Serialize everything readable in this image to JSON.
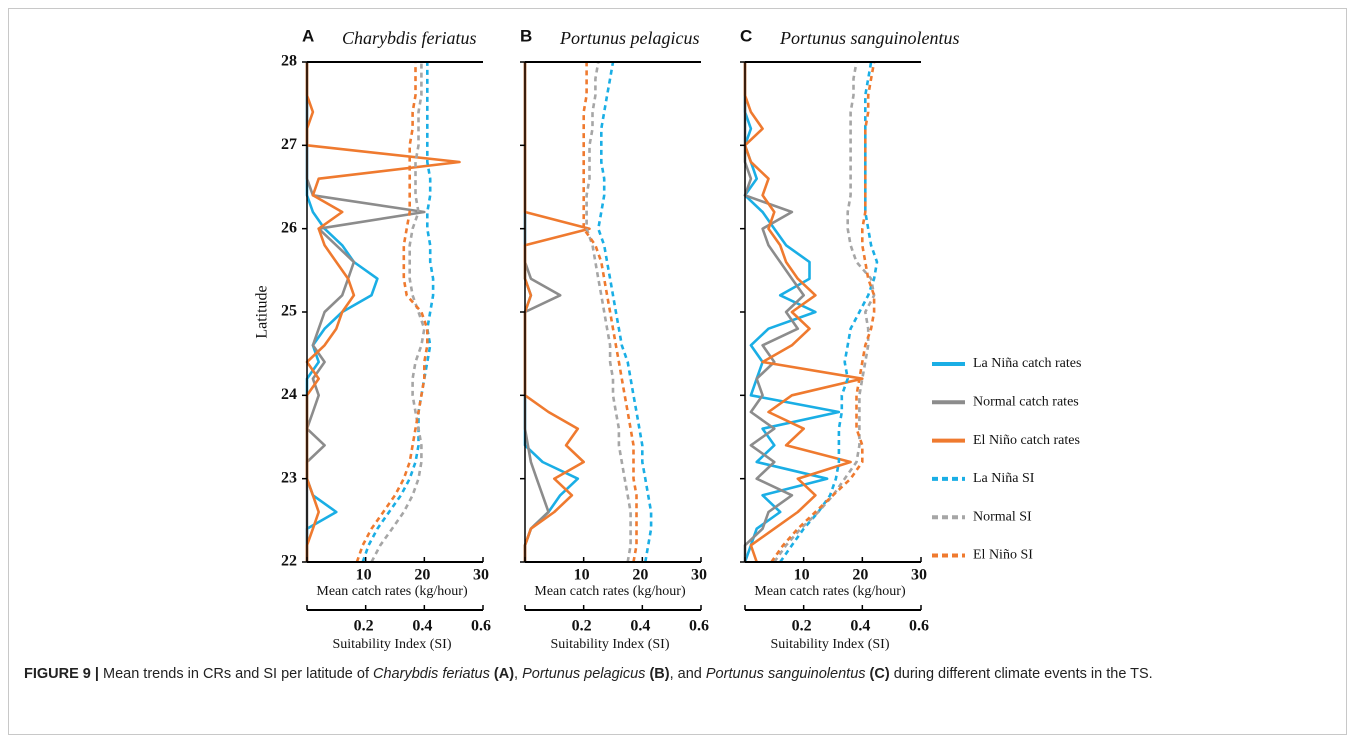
{
  "chart_data": [
    {
      "type": "line",
      "panel_label": "A",
      "title": "Charybdis feriatus",
      "ylabel": "Latitude",
      "xlabel": "Mean catch rates (kg/hour)",
      "x2label": "Suitability Index (SI)",
      "ylim": [
        22,
        28
      ],
      "yticks": [
        22,
        23,
        24,
        25,
        26,
        27,
        28
      ],
      "show_ytick_labels": true,
      "xlim": [
        0,
        30
      ],
      "xticks": [
        10,
        20,
        30
      ],
      "x2lim": [
        0,
        0.6
      ],
      "x2ticks": [
        0.2,
        0.4,
        0.6
      ],
      "legend": "right",
      "y": [
        22,
        22.2,
        22.4,
        22.6,
        22.8,
        23,
        23.2,
        23.4,
        23.6,
        23.8,
        24,
        24.2,
        24.4,
        24.6,
        24.8,
        25,
        25.2,
        25.4,
        25.6,
        25.8,
        26,
        26.2,
        26.4,
        26.6,
        26.8,
        27,
        27.2,
        27.4,
        27.6,
        27.8,
        28
      ],
      "series": [
        {
          "name": "La Niña catch rates",
          "color": "#1aaee5",
          "line_style": "solid",
          "values": [
            0,
            0,
            0,
            5,
            1,
            0,
            0,
            0,
            0,
            0,
            0,
            0,
            2,
            1,
            3,
            6,
            11,
            12,
            8,
            6,
            3,
            1,
            0,
            0,
            0,
            0,
            0,
            0,
            0,
            0,
            0
          ]
        },
        {
          "name": "Normal catch rates",
          "color": "#8c8c8c",
          "line_style": "solid",
          "values": [
            0,
            0,
            0,
            0,
            0,
            0,
            0,
            3,
            0,
            1,
            2,
            1,
            3,
            1,
            2,
            3,
            6,
            7,
            8,
            5,
            2,
            20,
            1,
            0,
            0,
            0,
            0,
            0,
            0,
            0,
            0
          ]
        },
        {
          "name": "El Niño catch rates",
          "color": "#ef7a2f",
          "line_style": "solid",
          "values": [
            0,
            0,
            1,
            2,
            1,
            0,
            0,
            0,
            0,
            0,
            0,
            2,
            0,
            3,
            5,
            6,
            8,
            7,
            5,
            3,
            2,
            6,
            1,
            2,
            26,
            0,
            0,
            1,
            0,
            0,
            0
          ]
        },
        {
          "name": "La Niña SI",
          "color": "#1aaee5",
          "line_style": "dashed",
          "axis": "x2",
          "values": [
            0.19,
            0.21,
            0.24,
            0.28,
            0.32,
            0.35,
            0.37,
            0.38,
            0.38,
            0.38,
            0.39,
            0.4,
            0.41,
            0.42,
            0.41,
            0.42,
            0.43,
            0.43,
            0.42,
            0.42,
            0.41,
            0.41,
            0.42,
            0.42,
            0.41,
            0.41,
            0.41,
            0.41,
            0.41,
            0.41,
            0.41
          ]
        },
        {
          "name": "Normal SI",
          "color": "#a6a6a6",
          "line_style": "dashed",
          "axis": "x2",
          "values": [
            0.22,
            0.25,
            0.29,
            0.33,
            0.36,
            0.38,
            0.39,
            0.39,
            0.38,
            0.37,
            0.36,
            0.36,
            0.37,
            0.39,
            0.4,
            0.38,
            0.36,
            0.35,
            0.35,
            0.35,
            0.36,
            0.38,
            0.37,
            0.37,
            0.37,
            0.38,
            0.38,
            0.38,
            0.39,
            0.39,
            0.39
          ]
        },
        {
          "name": "El Niño SI",
          "color": "#ef7a2f",
          "line_style": "dashed",
          "axis": "x2",
          "values": [
            0.17,
            0.19,
            0.22,
            0.26,
            0.3,
            0.33,
            0.35,
            0.36,
            0.37,
            0.38,
            0.39,
            0.4,
            0.4,
            0.41,
            0.41,
            0.39,
            0.34,
            0.33,
            0.33,
            0.33,
            0.34,
            0.35,
            0.35,
            0.35,
            0.35,
            0.35,
            0.36,
            0.36,
            0.37,
            0.37,
            0.37
          ]
        }
      ]
    },
    {
      "type": "line",
      "panel_label": "B",
      "title": "Portunus pelagicus",
      "xlabel": "Mean catch rates (kg/hour)",
      "x2label": "Suitability Index (SI)",
      "ylim": [
        22,
        28
      ],
      "yticks": [
        22,
        23,
        24,
        25,
        26,
        27,
        28
      ],
      "show_ytick_labels": false,
      "xlim": [
        0,
        30
      ],
      "xticks": [
        10,
        20,
        30
      ],
      "x2lim": [
        0,
        0.6
      ],
      "x2ticks": [
        0.2,
        0.4,
        0.6
      ],
      "y": [
        22,
        22.2,
        22.4,
        22.6,
        22.8,
        23,
        23.2,
        23.4,
        23.6,
        23.8,
        24,
        24.2,
        24.4,
        24.6,
        24.8,
        25,
        25.2,
        25.4,
        25.6,
        25.8,
        26,
        26.2,
        26.4,
        26.6,
        26.8,
        27,
        27.2,
        27.4,
        27.6,
        27.8,
        28
      ],
      "series": [
        {
          "color": "#1aaee5",
          "line_style": "solid",
          "values": [
            0,
            0,
            1,
            4,
            6,
            9,
            3,
            0,
            0,
            0,
            0,
            0,
            0,
            0,
            0,
            0,
            1,
            0,
            0,
            0,
            0,
            0,
            0,
            0,
            0,
            0,
            0,
            0,
            0,
            0,
            0
          ]
        },
        {
          "color": "#8c8c8c",
          "line_style": "solid",
          "values": [
            0,
            0,
            1,
            4,
            3,
            2,
            1,
            0.5,
            0,
            0,
            0,
            0,
            0,
            0,
            0,
            0,
            6,
            1,
            0,
            0,
            0,
            0,
            0,
            0,
            0,
            0,
            0,
            0,
            0,
            0,
            0
          ]
        },
        {
          "color": "#ef7a2f",
          "line_style": "solid",
          "values": [
            0,
            0,
            1,
            5,
            8,
            5,
            10,
            7,
            9,
            4,
            0,
            0,
            0,
            0,
            0,
            0,
            1,
            0,
            0,
            0,
            11,
            0,
            0,
            0,
            0,
            0,
            0,
            0,
            0,
            0,
            0
          ]
        },
        {
          "color": "#1aaee5",
          "line_style": "dashed",
          "axis": "x2",
          "values": [
            0.41,
            0.42,
            0.43,
            0.43,
            0.42,
            0.41,
            0.4,
            0.4,
            0.39,
            0.38,
            0.37,
            0.36,
            0.35,
            0.33,
            0.32,
            0.31,
            0.3,
            0.29,
            0.28,
            0.27,
            0.25,
            0.26,
            0.27,
            0.27,
            0.26,
            0.26,
            0.26,
            0.27,
            0.28,
            0.29,
            0.3
          ]
        },
        {
          "color": "#a6a6a6",
          "line_style": "dashed",
          "axis": "x2",
          "values": [
            0.35,
            0.36,
            0.36,
            0.36,
            0.35,
            0.34,
            0.33,
            0.32,
            0.32,
            0.31,
            0.3,
            0.3,
            0.29,
            0.29,
            0.28,
            0.27,
            0.26,
            0.25,
            0.24,
            0.23,
            0.21,
            0.21,
            0.21,
            0.22,
            0.22,
            0.22,
            0.23,
            0.23,
            0.24,
            0.24,
            0.25
          ]
        },
        {
          "color": "#ef7a2f",
          "line_style": "dashed",
          "axis": "x2",
          "values": [
            0.37,
            0.38,
            0.38,
            0.38,
            0.38,
            0.37,
            0.37,
            0.37,
            0.36,
            0.35,
            0.34,
            0.33,
            0.32,
            0.31,
            0.3,
            0.29,
            0.28,
            0.27,
            0.26,
            0.24,
            0.2,
            0.2,
            0.2,
            0.2,
            0.2,
            0.2,
            0.2,
            0.2,
            0.21,
            0.21,
            0.21
          ]
        }
      ]
    },
    {
      "type": "line",
      "panel_label": "C",
      "title": "Portunus sanguinolentus",
      "xlabel": "Mean catch rates (kg/hour)",
      "x2label": "Suitability Index (SI)",
      "ylim": [
        22,
        28
      ],
      "yticks": [
        22,
        23,
        24,
        25,
        26,
        27,
        28
      ],
      "show_ytick_labels": false,
      "xlim": [
        0,
        30
      ],
      "xticks": [
        10,
        20,
        30
      ],
      "x2lim": [
        0,
        0.6
      ],
      "x2ticks": [
        0.2,
        0.4,
        0.6
      ],
      "y": [
        22,
        22.2,
        22.4,
        22.6,
        22.8,
        23,
        23.2,
        23.4,
        23.6,
        23.8,
        24,
        24.2,
        24.4,
        24.6,
        24.8,
        25,
        25.2,
        25.4,
        25.6,
        25.8,
        26,
        26.2,
        26.4,
        26.6,
        26.8,
        27,
        27.2,
        27.4,
        27.6,
        27.8,
        28
      ],
      "series": [
        {
          "color": "#1aaee5",
          "line_style": "solid",
          "values": [
            0,
            1,
            2,
            6,
            3,
            14,
            2,
            5,
            3,
            16,
            1,
            2,
            3,
            1,
            4,
            12,
            6,
            11,
            11,
            7,
            5,
            3,
            0,
            2,
            1,
            0,
            1,
            0,
            0,
            0,
            0
          ]
        },
        {
          "color": "#8c8c8c",
          "line_style": "solid",
          "values": [
            0,
            0,
            3,
            4,
            8,
            2,
            5,
            1,
            5,
            1,
            3,
            2,
            5,
            3,
            9,
            7,
            10,
            8,
            6,
            4,
            3,
            8,
            0,
            1,
            0,
            0,
            0,
            0,
            0,
            0,
            0
          ]
        },
        {
          "color": "#ef7a2f",
          "line_style": "solid",
          "values": [
            2,
            1,
            5,
            9,
            12,
            9,
            18,
            7,
            10,
            4,
            8,
            20,
            3,
            8,
            11,
            8,
            12,
            9,
            7,
            6,
            4,
            5,
            3,
            4,
            1,
            0,
            3,
            1,
            0,
            0,
            0
          ]
        },
        {
          "color": "#1aaee5",
          "line_style": "dashed",
          "axis": "x2",
          "values": [
            0.12,
            0.16,
            0.2,
            0.25,
            0.29,
            0.31,
            0.32,
            0.32,
            0.32,
            0.33,
            0.33,
            0.35,
            0.34,
            0.35,
            0.36,
            0.39,
            0.42,
            0.44,
            0.45,
            0.43,
            0.42,
            0.41,
            0.41,
            0.41,
            0.41,
            0.41,
            0.41,
            0.41,
            0.41,
            0.42,
            0.43
          ]
        },
        {
          "color": "#a6a6a6",
          "line_style": "dashed",
          "axis": "x2",
          "values": [
            0.1,
            0.14,
            0.19,
            0.25,
            0.3,
            0.34,
            0.38,
            0.39,
            0.39,
            0.39,
            0.39,
            0.4,
            0.41,
            0.42,
            0.42,
            0.41,
            0.44,
            0.43,
            0.38,
            0.36,
            0.35,
            0.35,
            0.36,
            0.36,
            0.36,
            0.36,
            0.36,
            0.36,
            0.37,
            0.37,
            0.38
          ]
        },
        {
          "color": "#ef7a2f",
          "line_style": "dashed",
          "axis": "x2",
          "values": [
            0.09,
            0.13,
            0.18,
            0.24,
            0.3,
            0.36,
            0.4,
            0.4,
            0.38,
            0.38,
            0.38,
            0.39,
            0.4,
            0.41,
            0.43,
            0.44,
            0.44,
            0.42,
            0.41,
            0.4,
            0.4,
            0.41,
            0.41,
            0.41,
            0.41,
            0.41,
            0.41,
            0.42,
            0.42,
            0.43,
            0.44
          ]
        }
      ]
    }
  ],
  "caption": [
    {
      "text": "FIGURE 9 |",
      "style": "bold"
    },
    {
      "text": " Mean trends in CRs and SI per latitude of ",
      "style": "normal"
    },
    {
      "text": "Charybdis feriatus",
      "style": "italic"
    },
    {
      "text": " (A)",
      "style": "bold"
    },
    {
      "text": ", ",
      "style": "normal"
    },
    {
      "text": "Portunus pelagicus",
      "style": "italic"
    },
    {
      "text": " (B)",
      "style": "bold"
    },
    {
      "text": ", and ",
      "style": "normal"
    },
    {
      "text": "Portunus sanguinolentus",
      "style": "italic"
    },
    {
      "text": " (C)",
      "style": "bold"
    },
    {
      "text": " during different climate events in the TS.",
      "style": "normal"
    }
  ]
}
